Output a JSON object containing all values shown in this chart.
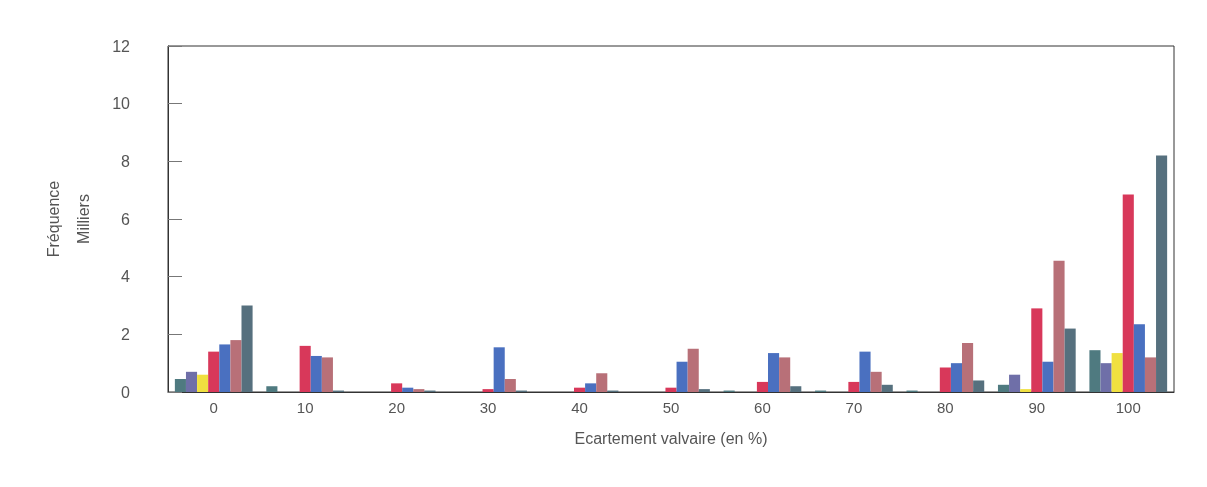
{
  "chart_data": {
    "type": "bar",
    "xlabel": "Ecartement valvaire (en %)",
    "ylabel": "Fréquence\nMilliers",
    "categories": [
      "0",
      "10",
      "20",
      "30",
      "40",
      "50",
      "60",
      "70",
      "80",
      "90",
      "100"
    ],
    "series": [
      {
        "color": "#4f7a80",
        "values": [
          0.45,
          0.2,
          null,
          null,
          null,
          null,
          0.05,
          0.05,
          0.05,
          0.25,
          1.45
        ]
      },
      {
        "color": "#6f6fa8",
        "values": [
          0.7,
          null,
          null,
          null,
          null,
          null,
          null,
          null,
          null,
          0.6,
          1.0
        ]
      },
      {
        "color": "#f0e040",
        "values": [
          0.6,
          null,
          null,
          null,
          null,
          null,
          null,
          null,
          null,
          0.1,
          1.35
        ]
      },
      {
        "color": "#d8385a",
        "values": [
          1.4,
          1.6,
          0.3,
          0.1,
          0.15,
          0.15,
          0.35,
          0.35,
          0.85,
          2.9,
          6.85
        ]
      },
      {
        "color": "#4a70c0",
        "values": [
          1.65,
          1.25,
          0.15,
          1.55,
          0.3,
          1.05,
          1.35,
          1.4,
          1.0,
          1.05,
          2.35
        ]
      },
      {
        "color": "#b87078",
        "values": [
          1.8,
          1.2,
          0.1,
          0.45,
          0.65,
          1.5,
          1.2,
          0.7,
          1.7,
          4.55,
          1.2
        ]
      },
      {
        "color": "#56707e",
        "values": [
          3.0,
          0.05,
          0.05,
          0.05,
          0.05,
          0.1,
          0.2,
          0.25,
          0.4,
          2.2,
          8.2
        ]
      }
    ],
    "ylim": [
      0,
      12
    ],
    "yticks": [
      0,
      2,
      4,
      6,
      8,
      10,
      12
    ],
    "grid": false
  }
}
